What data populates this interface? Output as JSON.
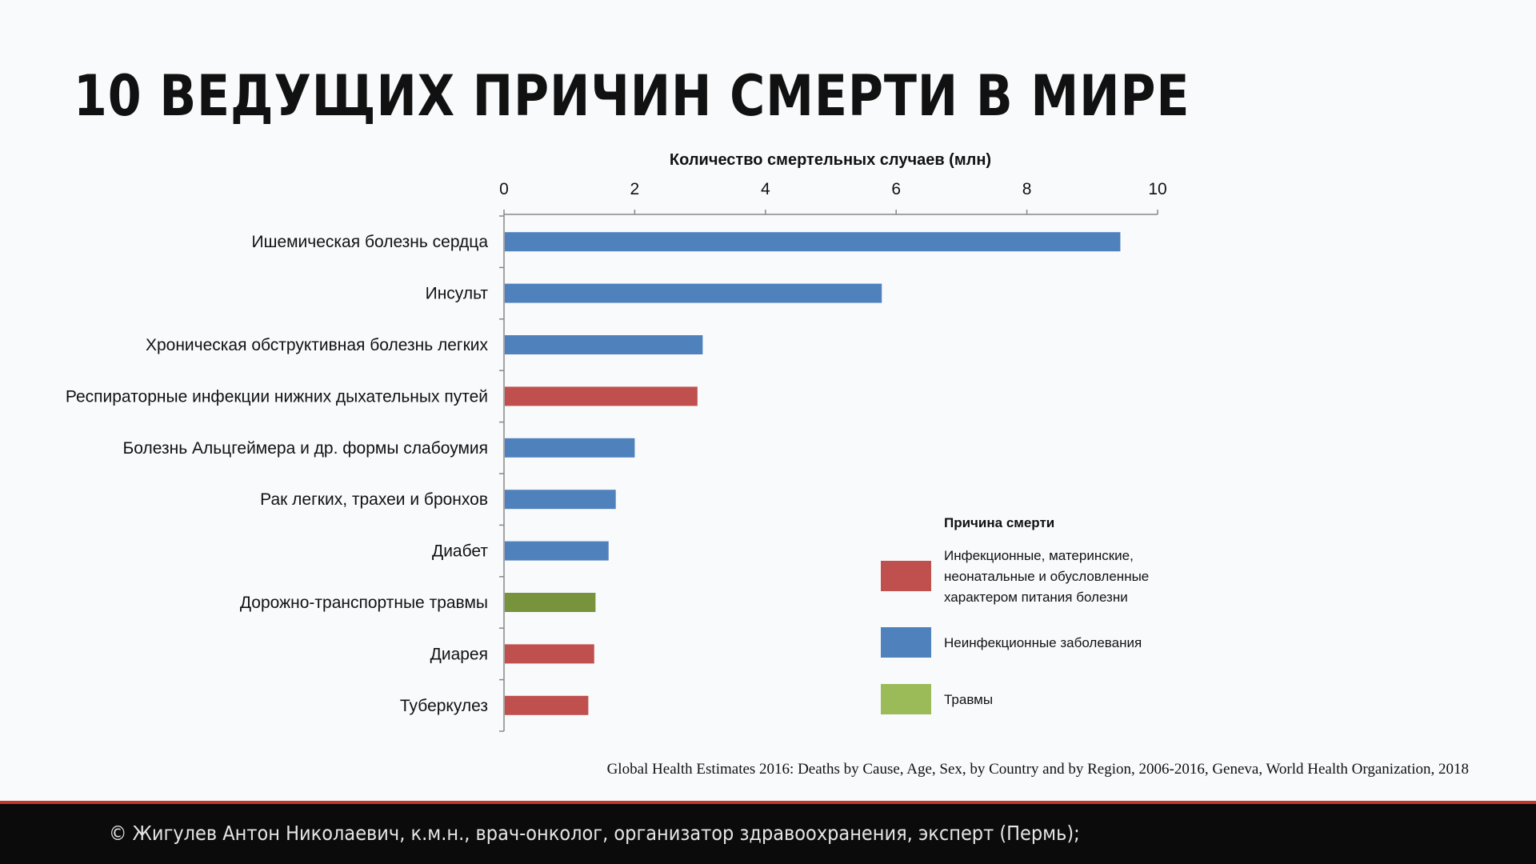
{
  "slide": {
    "title": "10 ВЕДУЩИХ ПРИЧИН СМЕРТИ В МИРЕ",
    "source": "Global Health Estimates 2016: Deaths by Cause, Age, Sex, by Country and by Region, 2006-2016, Geneva, World Health Organization, 2018",
    "footer": "© Жигулев Антон Николаевич, к.м.н., врач-онколог, организатор здравоохранения, эксперт (Пермь);"
  },
  "chart_data": {
    "type": "bar",
    "orientation": "horizontal",
    "xlabel": "Количество смертельных случаев (млн)",
    "xlabel_position": "top",
    "xlim": [
      0,
      10
    ],
    "ticks": [
      0,
      2,
      4,
      6,
      8,
      10
    ],
    "grid": false,
    "categories": [
      "Ишемическая болезнь сердца",
      "Инсульт",
      "Хроническая обструктивная болезнь легких",
      "Респираторные инфекции нижних дыхательных путей",
      "Болезнь Альцгеймера и др. формы слабоумия",
      "Рак легких, трахеи и бронхов",
      "Диабет",
      "Дорожно-транспортные травмы",
      "Диарея",
      "Туберкулез"
    ],
    "values": [
      9.43,
      5.78,
      3.04,
      2.96,
      2.0,
      1.71,
      1.6,
      1.4,
      1.38,
      1.29
    ],
    "groups": [
      1,
      1,
      1,
      0,
      1,
      1,
      1,
      2,
      0,
      0
    ],
    "legend": {
      "title": "Причина смерти",
      "position": "right",
      "entries": [
        {
          "label_lines": [
            "Инфекционные, материнские,",
            "неонатальные и обусловленные",
            "характером питания болезни"
          ],
          "color": "#c0504d",
          "bar_color": "#c0504d"
        },
        {
          "label_lines": [
            "Неинфекционные заболевания"
          ],
          "color": "#4f81bd",
          "bar_color": "#4f81bd"
        },
        {
          "label_lines": [
            "Травмы"
          ],
          "color": "#9bbb59",
          "bar_color": "#77933c"
        }
      ]
    }
  }
}
